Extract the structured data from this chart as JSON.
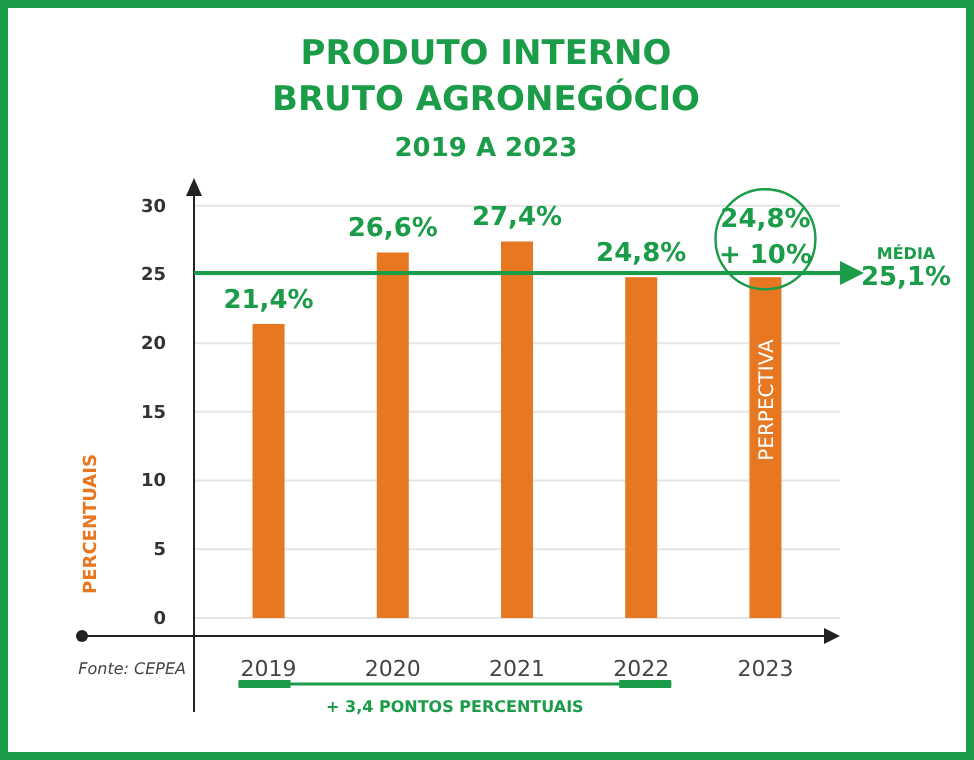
{
  "chart_data": {
    "type": "bar",
    "title": "PRODUTO INTERNO BRUTO AGRONEGÓCIO",
    "subtitle": "2019 A 2023",
    "ylabel": "PERCENTUAIS",
    "categories": [
      "2019",
      "2020",
      "2021",
      "2022",
      "2023"
    ],
    "values": [
      21.4,
      26.6,
      27.4,
      24.8,
      24.8
    ],
    "color": "#e87722",
    "value_labels": [
      "21,4%",
      "26,6%",
      "27,4%",
      "24,8%",
      "24,8%"
    ],
    "ylim": [
      0,
      31
    ],
    "yticks": [
      0,
      5,
      10,
      15,
      20,
      25,
      30
    ],
    "grid": "y",
    "ref_lines": [
      {
        "axis": "y",
        "value": 25.1,
        "label": "MÉDIA 25,1%",
        "color": "#1a9c48"
      }
    ],
    "annotations": [
      "+ 10%",
      "PERPECTIVA",
      "Fonte: CEPEA",
      "+ 3,4 PONTOS PERCENTUAIS"
    ]
  }
}
